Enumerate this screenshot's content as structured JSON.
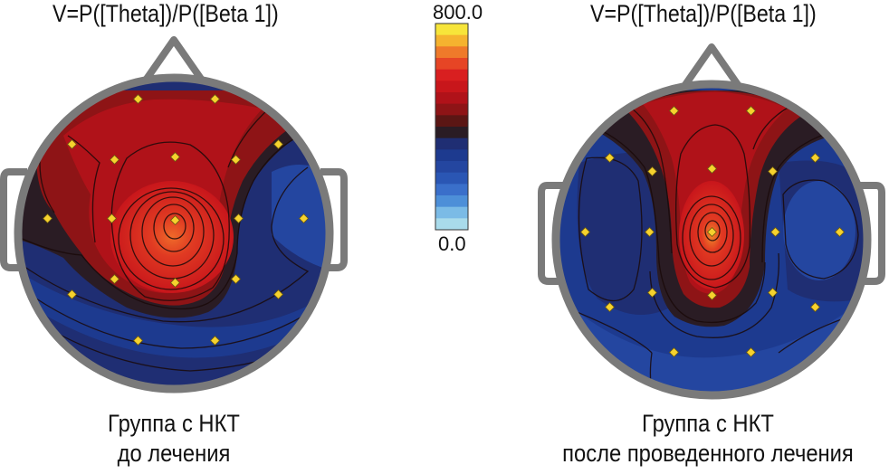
{
  "left_map": {
    "title": "V=P([Theta])/P([Beta 1])",
    "caption_line1": "Группа с НКТ",
    "caption_line2": "до лечения"
  },
  "right_map": {
    "title": "V=P([Theta])/P([Beta 1])",
    "caption_line1": "Группа с НКТ",
    "caption_line2": "после проведенного лечения"
  },
  "color_scale": {
    "max_label": "800.0",
    "min_label": "0.0",
    "colors": [
      "#f7e53a",
      "#f5b32f",
      "#ef7a2a",
      "#e64525",
      "#d91f20",
      "#c8161b",
      "#b01219",
      "#8e1416",
      "#5b1614",
      "#2a1c24",
      "#1f2e73",
      "#1d3a8f",
      "#2446a0",
      "#2a56b4",
      "#3a6fca",
      "#4d8fd8",
      "#7bbbe6",
      "#a9dbeb"
    ]
  },
  "sensor_color": "#f6d22e",
  "head_outline_color": "#7a7a7a"
}
